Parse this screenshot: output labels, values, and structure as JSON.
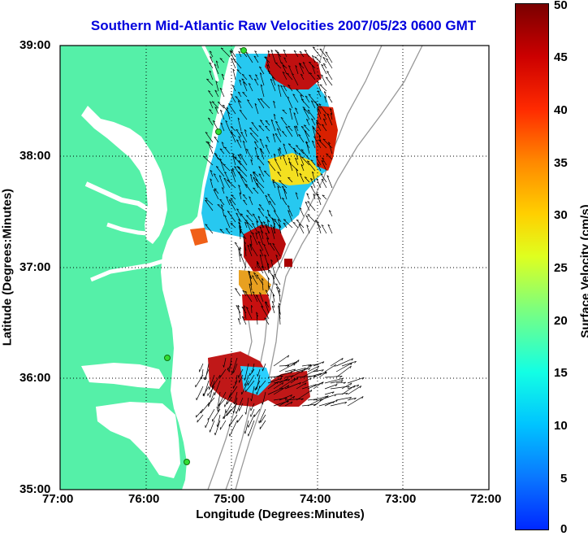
{
  "title": "Southern Mid-Atlantic Raw Velocities 2007/05/23 0600 GMT",
  "xlabel": "Longitude (Degrees:Minutes)",
  "ylabel": "Latitude (Degrees:Minutes)",
  "colorbar_label": "Surface Velocity (cm/s)",
  "x_ticks": [
    "77:00",
    "76:00",
    "75:00",
    "74:00",
    "73:00",
    "72:00"
  ],
  "y_ticks": [
    "39:00",
    "38:00",
    "37:00",
    "36:00",
    "35:00"
  ],
  "colorbar_ticks": [
    "50",
    "45",
    "40",
    "35",
    "30",
    "25",
    "20",
    "15",
    "10",
    "5",
    "0"
  ],
  "map": {
    "lon_range": [
      -77,
      -72
    ],
    "lat_range": [
      35,
      39
    ],
    "colorbar_range": [
      0,
      50
    ],
    "grid": "dotted",
    "land_color": "#55f0a8",
    "vector_color": "#000000",
    "station_color": "#33dd33"
  }
}
